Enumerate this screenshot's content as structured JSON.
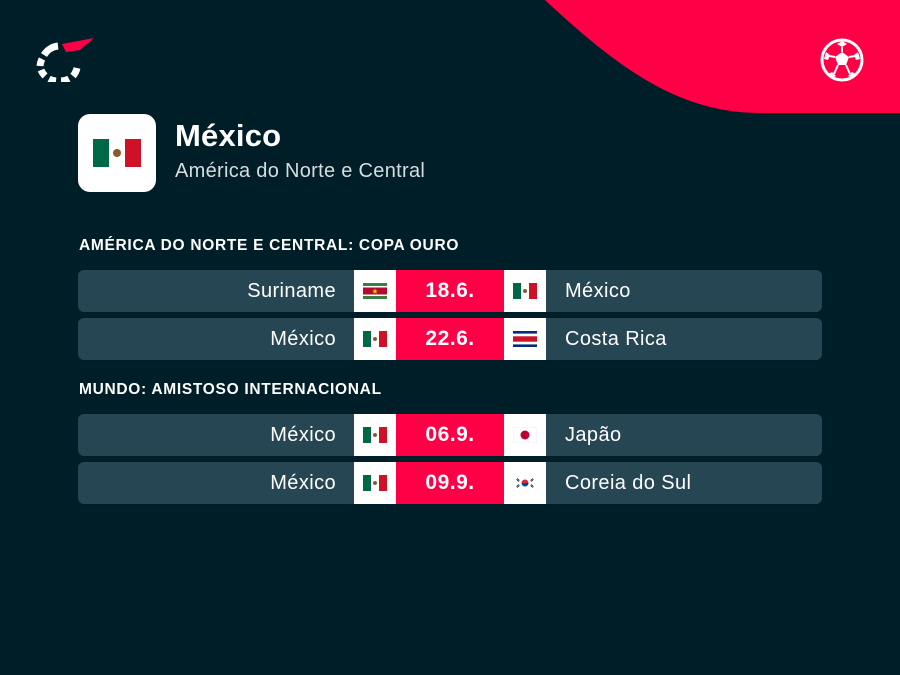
{
  "colors": {
    "background": "#001e28",
    "accent": "#ff0046",
    "row_background": "#264653"
  },
  "icons": {
    "logo": "flashscore-logo",
    "sport": "football-icon"
  },
  "team": {
    "name": "México",
    "region": "América do Norte e Central",
    "flag": "mexico-flag"
  },
  "sections": [
    {
      "title": "AMÉRICA DO NORTE E CENTRAL: COPA OURO",
      "matches": [
        {
          "home": "Suriname",
          "home_flag": "suriname-flag",
          "date": "18.6.",
          "away": "México",
          "away_flag": "mexico-flag"
        },
        {
          "home": "México",
          "home_flag": "mexico-flag",
          "date": "22.6.",
          "away": "Costa Rica",
          "away_flag": "costa-rica-flag"
        }
      ]
    },
    {
      "title": "MUNDO: AMISTOSO INTERNACIONAL",
      "matches": [
        {
          "home": "México",
          "home_flag": "mexico-flag",
          "date": "06.9.",
          "away": "Japão",
          "away_flag": "japan-flag"
        },
        {
          "home": "México",
          "home_flag": "mexico-flag",
          "date": "09.9.",
          "away": "Coreia do Sul",
          "away_flag": "south-korea-flag"
        }
      ]
    }
  ]
}
